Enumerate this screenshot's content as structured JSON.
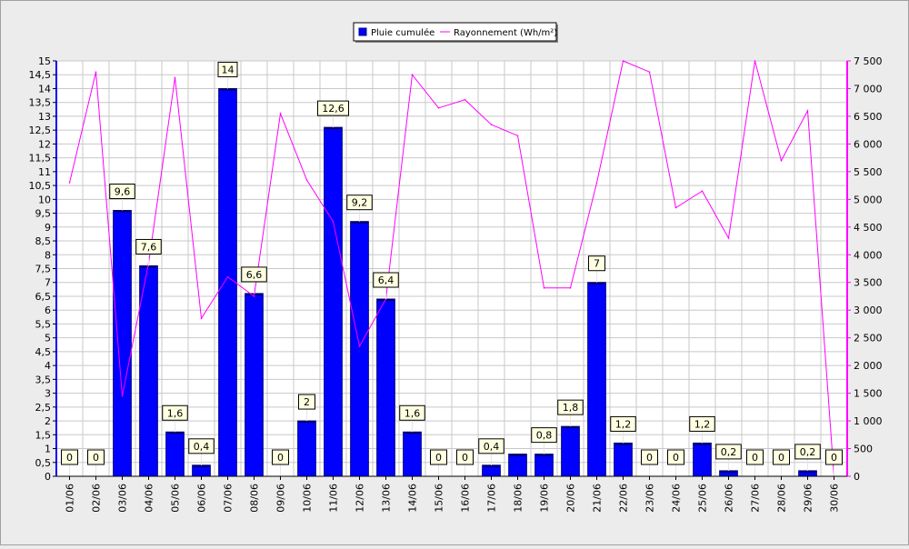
{
  "chart_data": {
    "type": "bar",
    "categories": [
      "01/06",
      "02/06",
      "03/06",
      "04/06",
      "05/06",
      "06/06",
      "07/06",
      "08/06",
      "09/06",
      "10/06",
      "11/06",
      "12/06",
      "13/06",
      "14/06",
      "15/06",
      "16/06",
      "17/06",
      "18/06",
      "19/06",
      "20/06",
      "21/06",
      "22/06",
      "23/06",
      "24/06",
      "25/06",
      "26/06",
      "27/06",
      "28/06",
      "29/06",
      "30/06"
    ],
    "series": [
      {
        "name": "Pluie cumulée",
        "type": "bar",
        "axis": "left",
        "color": "#0000ff",
        "values": [
          0,
          0,
          9.6,
          7.6,
          1.6,
          0.4,
          14,
          6.6,
          0,
          2,
          12.6,
          9.2,
          6.4,
          1.6,
          0,
          0,
          0.4,
          0.8,
          0.8,
          1.8,
          7,
          1.2,
          0,
          0,
          1.2,
          0.2,
          0,
          0,
          0.2,
          0
        ],
        "data_labels": [
          "0",
          "0",
          "9,6",
          "7,6",
          "1,6",
          "0,4",
          "14",
          "6,6",
          "0",
          "2",
          "12,6",
          "9,2",
          "6,4",
          "1,6",
          "0",
          "0",
          "0,4",
          "",
          "0,8",
          "1,8",
          "7",
          "1,2",
          "0",
          "0",
          "1,2",
          "0,2",
          "0",
          "0",
          "0,2",
          "0"
        ]
      },
      {
        "name": "Rayonnement (Wh/m²)",
        "type": "line",
        "axis": "right",
        "color": "#ff00ff",
        "values": [
          5300,
          7300,
          1450,
          3850,
          7200,
          2850,
          3600,
          3250,
          6550,
          5350,
          4600,
          2350,
          3200,
          7250,
          6650,
          6800,
          6350,
          6150,
          3400,
          3400,
          5300,
          7500,
          7300,
          4850,
          5150,
          4300,
          7500,
          5700,
          6600,
          0
        ]
      }
    ],
    "y_left": {
      "min": 0,
      "max": 15,
      "step": 0.5
    },
    "y_right": {
      "min": 0,
      "max": 7500,
      "step": 500
    },
    "legend_position": "top-center",
    "grid": true
  }
}
